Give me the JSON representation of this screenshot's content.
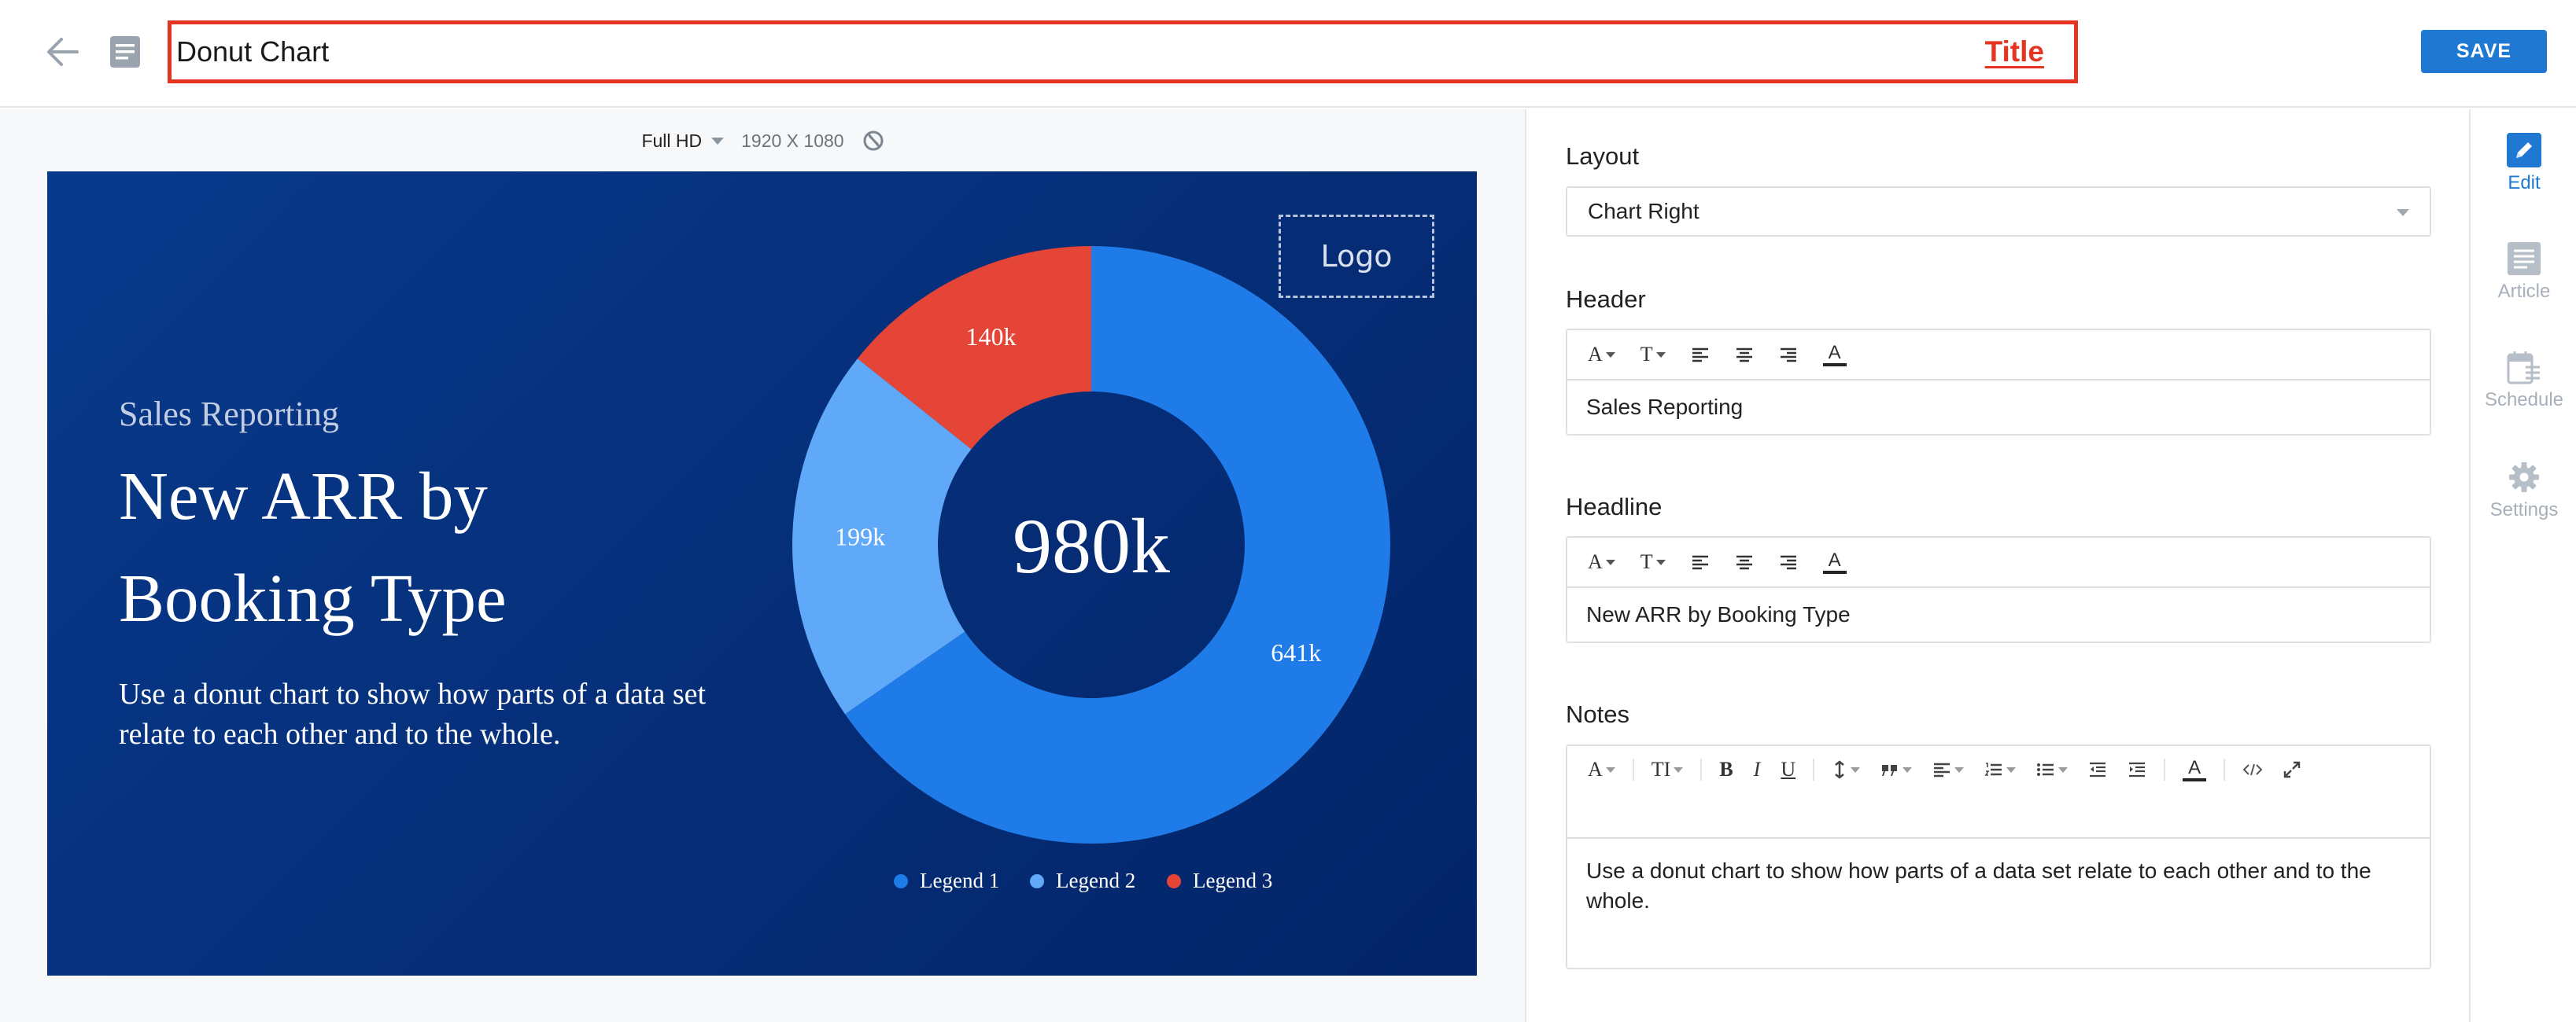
{
  "header": {
    "title_value": "Donut Chart",
    "title_tag": "Title",
    "save_label": "SAVE"
  },
  "canvas": {
    "resolution_label": "Full HD",
    "resolution_dims": "1920 X 1080"
  },
  "slide": {
    "header": "Sales Reporting",
    "headline": "New ARR by Booking Type",
    "notes": "Use a donut chart to show how parts of a data set relate to each other and to the whole.",
    "logo_text": "Logo"
  },
  "chart_data": {
    "type": "pie",
    "variant": "donut",
    "center_label": "980k",
    "categories": [
      "Legend 1",
      "Legend 2",
      "Legend 3"
    ],
    "values": [
      641,
      199,
      140
    ],
    "data_labels": [
      "641k",
      "199k",
      "140k"
    ],
    "colors": [
      "#1e7be8",
      "#5fa9f8",
      "#e44536"
    ],
    "legend_position": "bottom",
    "start_angle_deg": 0,
    "direction": "clockwise"
  },
  "panel": {
    "layout_label": "Layout",
    "layout_value": "Chart Right",
    "header_label": "Header",
    "header_value": "Sales Reporting",
    "headline_label": "Headline",
    "headline_value": "New ARR by Booking Type",
    "notes_label": "Notes",
    "notes_value": "Use a donut chart to show how parts of a data set relate to each other and to the whole."
  },
  "toolbar_glyphs": {
    "font": "A",
    "size": "T",
    "size_large": "TI",
    "bold": "B",
    "italic": "I",
    "underline": "U",
    "color": "A"
  },
  "rail": {
    "items": [
      {
        "label": "Edit"
      },
      {
        "label": "Article"
      },
      {
        "label": "Schedule"
      },
      {
        "label": "Settings"
      }
    ]
  },
  "colors": {
    "accent": "#1f78d1",
    "title_highlight": "#e53421",
    "slide_bg": "#06307b"
  }
}
